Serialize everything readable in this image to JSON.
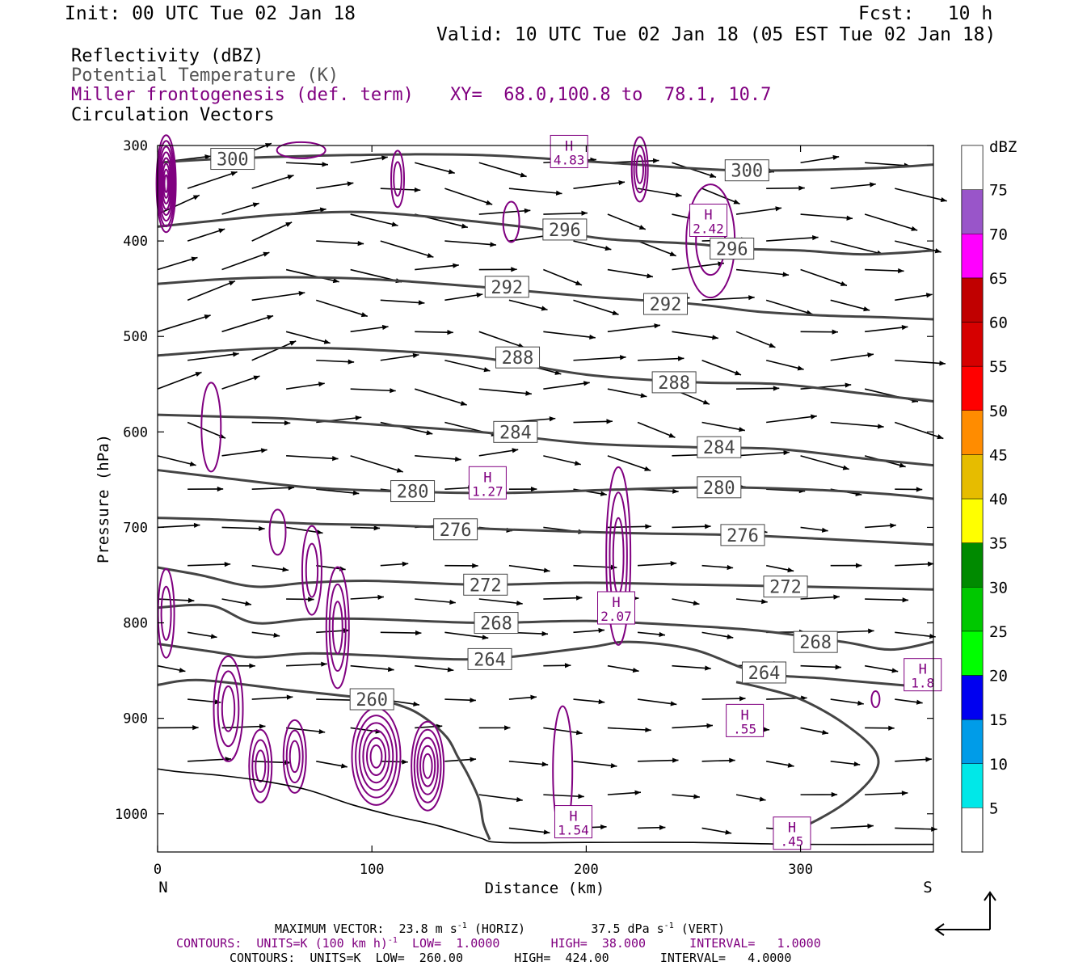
{
  "header": {
    "init": "Init: 00 UTC Tue 02 Jan 18",
    "fcst": "Fcst:   10 h",
    "valid": "Valid: 10 UTC Tue 02 Jan 18 (05 EST Tue 02 Jan 18)"
  },
  "fields": {
    "reflectivity": "Reflectivity (dBZ)",
    "theta": "Potential Temperature (K)",
    "frontogenesis": "Miller frontogenesis (def. term)",
    "xy": "XY=  68.0,100.8 to  78.1, 10.7",
    "circulation": "Circulation Vectors"
  },
  "colors": {
    "theta": "#444444",
    "frontogenesis": "#800080",
    "vectors": "#000000",
    "terrain": "#000000"
  },
  "colorbar": {
    "unit": "dBZ",
    "labels": [
      "5",
      "10",
      "15",
      "20",
      "25",
      "30",
      "35",
      "40",
      "45",
      "50",
      "55",
      "60",
      "65",
      "70",
      "75"
    ],
    "colors": [
      "#00e8e8",
      "#009ce8",
      "#0000f0",
      "#00ff00",
      "#00c800",
      "#008a00",
      "#ffff00",
      "#e6bc00",
      "#ff8c00",
      "#ff0000",
      "#d60000",
      "#c00000",
      "#ff00ff",
      "#9955c9",
      "#ffffff"
    ]
  },
  "footer": {
    "maxvec_a": "MAXIMUM VECTOR:  23.8 m s",
    "maxvec_a_sup": "-1",
    "maxvec_b": " (HORIZ)         37.5 dPa s",
    "maxvec_b_sup": "-1",
    "maxvec_c": " (VERT)",
    "cont1_a": "CONTOURS:  UNITS=K (100 km h)",
    "cont1_sup": "-1",
    "cont1_b": "  LOW=  1.0000       HIGH=  38.000      INTERVAL=   1.0000",
    "cont2": "CONTOURS:  UNITS=K  LOW=  260.00       HIGH=  424.00       INTERVAL=   4.0000"
  },
  "chart_data": {
    "type": "cross-section",
    "xlabel": "Distance (km)",
    "ylabel": "Pressure (hPa)",
    "xlim": [
      0,
      362
    ],
    "ylim": [
      1040,
      300
    ],
    "x_ticks": [
      0,
      100,
      200,
      300
    ],
    "y_ticks": [
      300,
      400,
      500,
      600,
      700,
      800,
      900,
      1000
    ],
    "left_end_label": "N",
    "right_end_label": "S",
    "theta_contours": [
      {
        "value": 300,
        "points": [
          [
            0,
            318
          ],
          [
            30,
            314
          ],
          [
            90,
            310
          ],
          [
            150,
            310
          ],
          [
            210,
            318
          ],
          [
            270,
            326
          ],
          [
            330,
            324
          ],
          [
            362,
            320
          ]
        ]
      },
      {
        "value": 296,
        "points": [
          [
            0,
            385
          ],
          [
            30,
            378
          ],
          [
            60,
            372
          ],
          [
            100,
            370
          ],
          [
            150,
            380
          ],
          [
            180,
            388
          ],
          [
            210,
            398
          ],
          [
            250,
            403
          ],
          [
            270,
            408
          ],
          [
            300,
            410
          ],
          [
            330,
            414
          ],
          [
            362,
            410
          ]
        ]
      },
      {
        "value": 292,
        "points": [
          [
            0,
            445
          ],
          [
            30,
            440
          ],
          [
            60,
            438
          ],
          [
            100,
            440
          ],
          [
            150,
            448
          ],
          [
            200,
            458
          ],
          [
            250,
            466
          ],
          [
            280,
            474
          ],
          [
            310,
            478
          ],
          [
            340,
            480
          ],
          [
            362,
            482
          ]
        ]
      },
      {
        "value": 288,
        "points": [
          [
            0,
            520
          ],
          [
            30,
            515
          ],
          [
            60,
            512
          ],
          [
            100,
            514
          ],
          [
            150,
            522
          ],
          [
            200,
            540
          ],
          [
            250,
            548
          ],
          [
            290,
            550
          ],
          [
            330,
            560
          ],
          [
            362,
            568
          ]
        ]
      },
      {
        "value": 284,
        "points": [
          [
            0,
            582
          ],
          [
            30,
            584
          ],
          [
            60,
            586
          ],
          [
            100,
            592
          ],
          [
            150,
            600
          ],
          [
            200,
            612
          ],
          [
            250,
            616
          ],
          [
            290,
            618
          ],
          [
            330,
            628
          ],
          [
            362,
            635
          ]
        ]
      },
      {
        "value": 280,
        "points": [
          [
            0,
            640
          ],
          [
            30,
            648
          ],
          [
            70,
            658
          ],
          [
            110,
            662
          ],
          [
            160,
            664
          ],
          [
            220,
            660
          ],
          [
            260,
            658
          ],
          [
            300,
            660
          ],
          [
            340,
            665
          ],
          [
            362,
            670
          ]
        ]
      },
      {
        "value": 276,
        "points": [
          [
            0,
            690
          ],
          [
            30,
            692
          ],
          [
            70,
            696
          ],
          [
            110,
            698
          ],
          [
            160,
            702
          ],
          [
            220,
            706
          ],
          [
            270,
            708
          ],
          [
            310,
            712
          ],
          [
            362,
            718
          ]
        ]
      },
      {
        "value": 272,
        "points": [
          [
            0,
            742
          ],
          [
            20,
            750
          ],
          [
            45,
            762
          ],
          [
            70,
            758
          ],
          [
            100,
            756
          ],
          [
            150,
            760
          ],
          [
            200,
            758
          ],
          [
            250,
            760
          ],
          [
            300,
            762
          ],
          [
            362,
            765
          ]
        ]
      },
      {
        "value": 268,
        "points": [
          [
            0,
            784
          ],
          [
            25,
            782
          ],
          [
            45,
            800
          ],
          [
            70,
            796
          ],
          [
            100,
            796
          ],
          [
            150,
            800
          ],
          [
            200,
            798
          ],
          [
            240,
            802
          ],
          [
            280,
            808
          ],
          [
            320,
            820
          ],
          [
            342,
            828
          ],
          [
            362,
            820
          ]
        ]
      },
      {
        "value": 264,
        "points": [
          [
            0,
            822
          ],
          [
            25,
            830
          ],
          [
            45,
            836
          ],
          [
            70,
            832
          ],
          [
            100,
            834
          ],
          [
            150,
            838
          ],
          [
            200,
            826
          ],
          [
            220,
            820
          ],
          [
            250,
            828
          ],
          [
            280,
            852
          ],
          [
            310,
            858
          ],
          [
            330,
            862
          ],
          [
            362,
            868
          ]
        ]
      },
      {
        "value": 260,
        "points": [
          [
            0,
            865
          ],
          [
            20,
            860
          ],
          [
            60,
            870
          ],
          [
            100,
            880
          ],
          [
            115,
            888
          ],
          [
            125,
            900
          ],
          [
            135,
            920
          ],
          [
            140,
            940
          ],
          [
            145,
            960
          ],
          [
            150,
            985
          ],
          [
            152,
            1010
          ],
          [
            155,
            1027
          ]
        ]
      },
      {
        "value": 260,
        "points": [
          [
            290,
            1020
          ],
          [
            300,
            1015
          ],
          [
            320,
            990
          ],
          [
            334,
            960
          ],
          [
            335,
            935
          ],
          [
            320,
            905
          ],
          [
            300,
            880
          ],
          [
            282,
            868
          ],
          [
            270,
            862
          ]
        ]
      }
    ],
    "frontogenesis_maxima": [
      {
        "label": "H",
        "value": "2.42",
        "x": 257,
        "p": 380
      },
      {
        "label": "H",
        "value": "1.27",
        "x": 154,
        "p": 655
      },
      {
        "label": "H",
        "value": "2.07",
        "x": 214,
        "p": 786
      },
      {
        "label": "H",
        "value": ".55",
        "x": 274,
        "p": 904
      },
      {
        "label": "H",
        "value": "1.54",
        "x": 194,
        "p": 1010
      },
      {
        "label": "H",
        "value": ".45",
        "x": 296,
        "p": 1022
      },
      {
        "label": "H",
        "value": "1.8",
        "x": 357,
        "p": 856
      },
      {
        "label": "H",
        "value": "4.83",
        "x": 192,
        "p": 308
      }
    ],
    "terrain": [
      [
        0,
        953
      ],
      [
        10,
        956
      ],
      [
        30,
        960
      ],
      [
        50,
        966
      ],
      [
        70,
        975
      ],
      [
        90,
        990
      ],
      [
        110,
        1002
      ],
      [
        130,
        1012
      ],
      [
        150,
        1025
      ],
      [
        160,
        1030
      ],
      [
        200,
        1030
      ],
      [
        250,
        1030
      ],
      [
        300,
        1032
      ],
      [
        362,
        1032
      ]
    ]
  }
}
